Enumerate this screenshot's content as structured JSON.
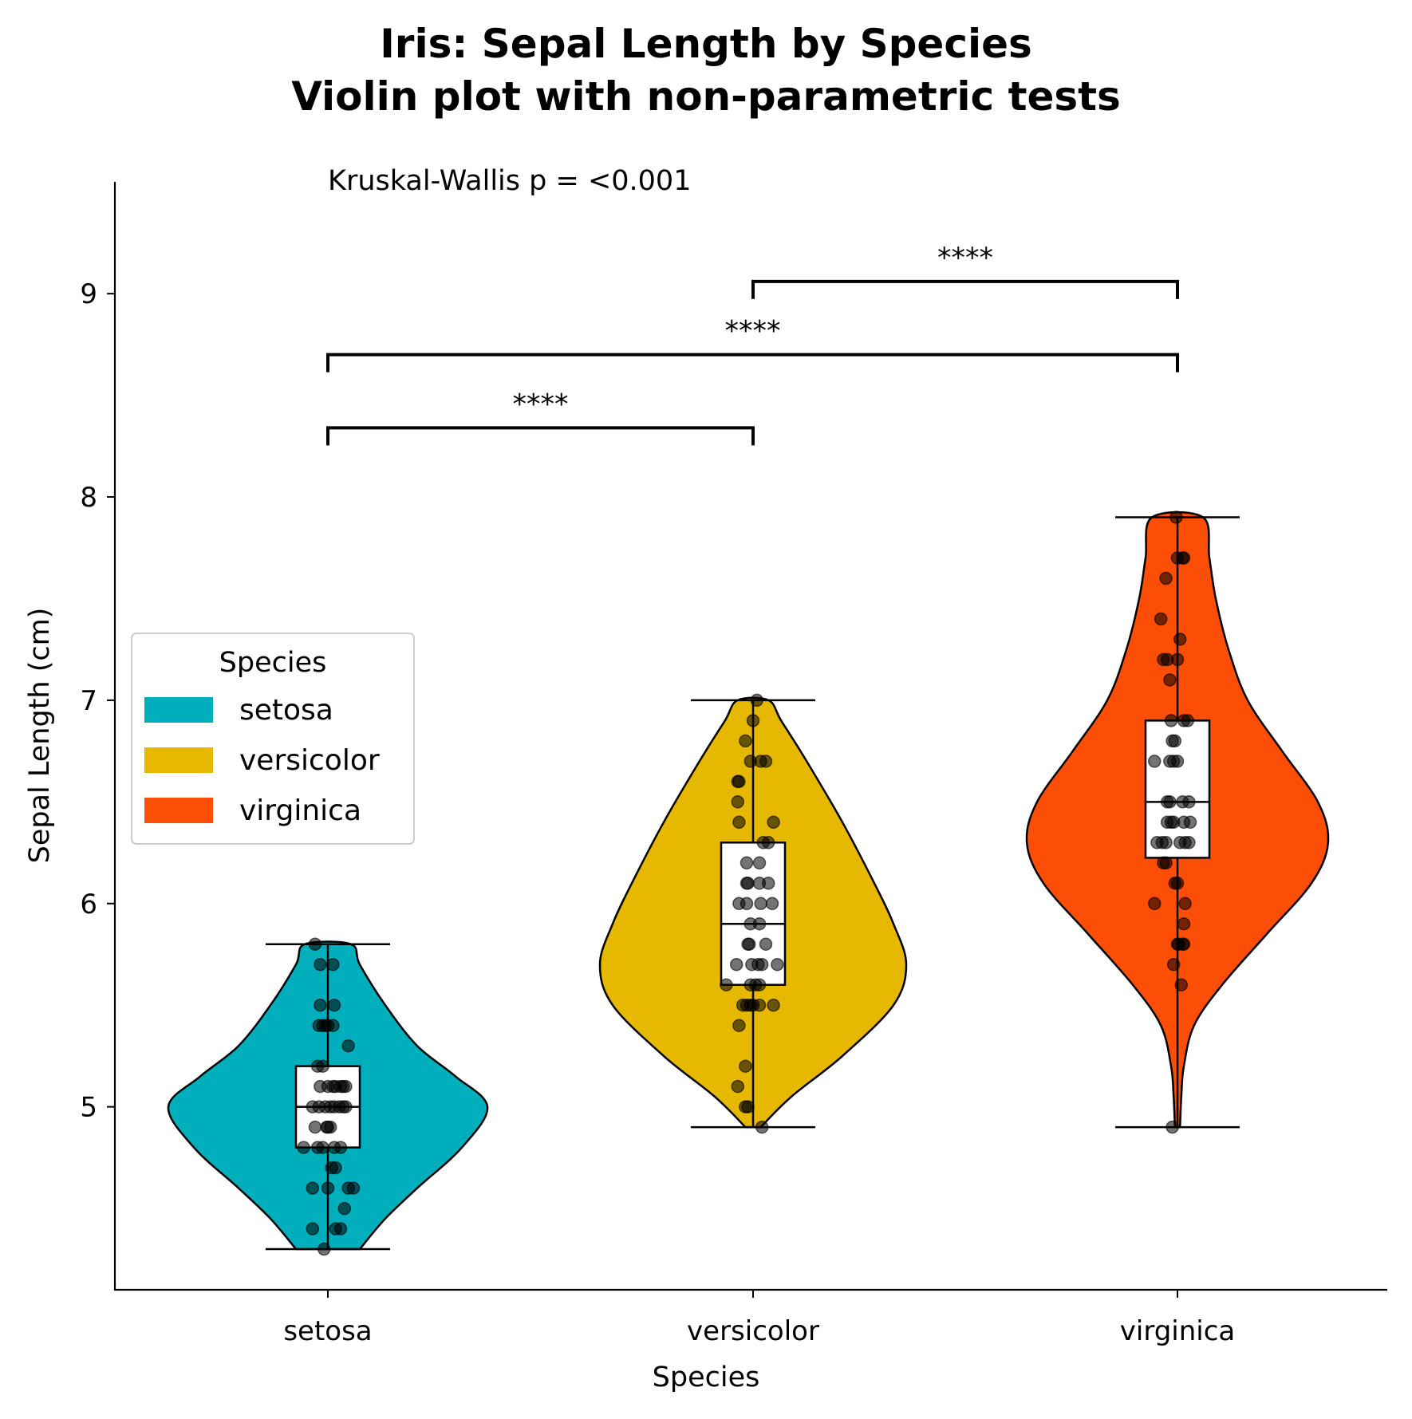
{
  "chart_data": {
    "type": "violin",
    "title": [
      "Iris: Sepal Length by Species",
      "Violin plot with non-parametric tests"
    ],
    "xlabel": "Species",
    "ylabel": "Sepal Length (cm)",
    "categories": [
      "setosa",
      "versicolor",
      "virginica"
    ],
    "y_ticks": [
      "5",
      "6",
      "7",
      "8",
      "9"
    ],
    "ylim": [
      4.1,
      9.55
    ],
    "annotation": "Kruskal-Wallis p = <0.001",
    "legend": {
      "title": "Species",
      "placement": "center-left",
      "entries": [
        {
          "label": "setosa",
          "color": "#00AFBB"
        },
        {
          "label": "versicolor",
          "color": "#E7B800"
        },
        {
          "label": "virginica",
          "color": "#FC4E07"
        }
      ]
    },
    "series": [
      {
        "category": "setosa",
        "color": "#00AFBB",
        "min": 4.3,
        "q1": 4.8,
        "median": 5.0,
        "q3": 5.2,
        "max": 5.8,
        "density": [
          [
            4.3,
            0.25
          ],
          [
            4.45,
            0.45
          ],
          [
            4.6,
            0.7
          ],
          [
            4.8,
            1.05
          ],
          [
            5.0,
            1.25
          ],
          [
            5.15,
            1.0
          ],
          [
            5.3,
            0.7
          ],
          [
            5.5,
            0.45
          ],
          [
            5.7,
            0.25
          ],
          [
            5.8,
            0.18
          ]
        ],
        "points": [
          [
            4.3,
            -0.03
          ],
          [
            4.4,
            -0.12
          ],
          [
            4.4,
            0.06
          ],
          [
            4.4,
            0.1
          ],
          [
            4.5,
            0.13
          ],
          [
            4.6,
            -0.12
          ],
          [
            4.6,
            0.0
          ],
          [
            4.6,
            0.16
          ],
          [
            4.6,
            0.2
          ],
          [
            4.7,
            0.03
          ],
          [
            4.7,
            0.06
          ],
          [
            4.8,
            -0.19
          ],
          [
            4.8,
            -0.08
          ],
          [
            4.8,
            -0.04
          ],
          [
            4.8,
            0.05
          ],
          [
            4.8,
            0.1
          ],
          [
            4.9,
            -0.1
          ],
          [
            4.9,
            -0.01
          ],
          [
            4.9,
            0.0
          ],
          [
            4.9,
            0.02
          ],
          [
            5.0,
            -0.12
          ],
          [
            5.0,
            -0.07
          ],
          [
            5.0,
            -0.02
          ],
          [
            5.0,
            0.02
          ],
          [
            5.0,
            0.05
          ],
          [
            5.0,
            0.09
          ],
          [
            5.0,
            0.12
          ],
          [
            5.0,
            0.14
          ],
          [
            5.1,
            -0.06
          ],
          [
            5.1,
            0.0
          ],
          [
            5.1,
            0.04
          ],
          [
            5.1,
            0.06
          ],
          [
            5.1,
            0.1
          ],
          [
            5.1,
            0.12
          ],
          [
            5.1,
            0.14
          ],
          [
            5.2,
            -0.08
          ],
          [
            5.2,
            -0.04
          ],
          [
            5.3,
            0.16
          ],
          [
            5.4,
            -0.07
          ],
          [
            5.4,
            -0.04
          ],
          [
            5.4,
            -0.02
          ],
          [
            5.4,
            0.0
          ],
          [
            5.4,
            0.04
          ],
          [
            5.5,
            -0.06
          ],
          [
            5.5,
            0.05
          ],
          [
            5.7,
            -0.06
          ],
          [
            5.7,
            0.04
          ],
          [
            5.8,
            -0.1
          ]
        ]
      },
      {
        "category": "versicolor",
        "color": "#E7B800",
        "min": 4.9,
        "q1": 5.6,
        "median": 5.9,
        "q3": 6.3,
        "max": 7.0,
        "density": [
          [
            4.9,
            0.06
          ],
          [
            5.05,
            0.3
          ],
          [
            5.25,
            0.7
          ],
          [
            5.5,
            1.1
          ],
          [
            5.7,
            1.2
          ],
          [
            5.9,
            1.1
          ],
          [
            6.1,
            0.95
          ],
          [
            6.4,
            0.7
          ],
          [
            6.7,
            0.42
          ],
          [
            6.9,
            0.22
          ],
          [
            7.0,
            0.12
          ]
        ],
        "points": [
          [
            4.9,
            0.07
          ],
          [
            5.0,
            -0.06
          ],
          [
            5.0,
            -0.04
          ],
          [
            5.1,
            -0.12
          ],
          [
            5.2,
            -0.06
          ],
          [
            5.4,
            -0.11
          ],
          [
            5.5,
            -0.08
          ],
          [
            5.5,
            -0.05
          ],
          [
            5.5,
            -0.02
          ],
          [
            5.5,
            0.0
          ],
          [
            5.5,
            0.05
          ],
          [
            5.5,
            0.16
          ],
          [
            5.6,
            -0.21
          ],
          [
            5.6,
            -0.02
          ],
          [
            5.6,
            0.02
          ],
          [
            5.6,
            0.05
          ],
          [
            5.7,
            -0.13
          ],
          [
            5.7,
            -0.01
          ],
          [
            5.7,
            0.04
          ],
          [
            5.7,
            0.07
          ],
          [
            5.7,
            0.19
          ],
          [
            5.8,
            -0.04
          ],
          [
            5.8,
            -0.03
          ],
          [
            5.8,
            0.1
          ],
          [
            5.9,
            -0.02
          ],
          [
            5.9,
            0.05
          ],
          [
            6.0,
            -0.11
          ],
          [
            6.0,
            -0.05
          ],
          [
            6.0,
            0.06
          ],
          [
            6.0,
            0.15
          ],
          [
            6.1,
            -0.05
          ],
          [
            6.1,
            -0.04
          ],
          [
            6.1,
            0.05
          ],
          [
            6.1,
            0.12
          ],
          [
            6.2,
            -0.05
          ],
          [
            6.2,
            0.05
          ],
          [
            6.3,
            0.08
          ],
          [
            6.3,
            0.12
          ],
          [
            6.4,
            -0.11
          ],
          [
            6.4,
            0.16
          ],
          [
            6.5,
            -0.12
          ],
          [
            6.6,
            -0.12
          ],
          [
            6.6,
            -0.11
          ],
          [
            6.7,
            -0.02
          ],
          [
            6.7,
            0.06
          ],
          [
            6.7,
            0.1
          ],
          [
            6.8,
            -0.06
          ],
          [
            6.9,
            0.0
          ],
          [
            7.0,
            0.03
          ]
        ]
      },
      {
        "category": "virginica",
        "color": "#FC4E07",
        "min": 4.9,
        "q1": 6.225,
        "median": 6.5,
        "q3": 6.9,
        "max": 7.9,
        "density": [
          [
            4.9,
            0.02
          ],
          [
            5.05,
            0.03
          ],
          [
            5.2,
            0.05
          ],
          [
            5.4,
            0.13
          ],
          [
            5.6,
            0.35
          ],
          [
            5.85,
            0.7
          ],
          [
            6.1,
            1.05
          ],
          [
            6.3,
            1.18
          ],
          [
            6.5,
            1.1
          ],
          [
            6.75,
            0.82
          ],
          [
            7.0,
            0.55
          ],
          [
            7.25,
            0.4
          ],
          [
            7.5,
            0.3
          ],
          [
            7.7,
            0.25
          ],
          [
            7.9,
            0.2
          ]
        ],
        "points": [
          [
            4.9,
            -0.04
          ],
          [
            5.6,
            0.03
          ],
          [
            5.7,
            -0.03
          ],
          [
            5.8,
            0.0
          ],
          [
            5.8,
            0.01
          ],
          [
            5.8,
            0.04
          ],
          [
            5.8,
            0.05
          ],
          [
            5.9,
            0.05
          ],
          [
            6.0,
            -0.18
          ],
          [
            6.0,
            0.06
          ],
          [
            6.1,
            -0.02
          ],
          [
            6.1,
            0.0
          ],
          [
            6.2,
            -0.11
          ],
          [
            6.2,
            -0.09
          ],
          [
            6.3,
            -0.16
          ],
          [
            6.3,
            -0.12
          ],
          [
            6.3,
            -0.09
          ],
          [
            6.3,
            0.02
          ],
          [
            6.3,
            0.06
          ],
          [
            6.3,
            0.09
          ],
          [
            6.4,
            -0.08
          ],
          [
            6.4,
            -0.05
          ],
          [
            6.4,
            -0.03
          ],
          [
            6.4,
            0.05
          ],
          [
            6.4,
            0.1
          ],
          [
            6.5,
            -0.08
          ],
          [
            6.5,
            -0.06
          ],
          [
            6.5,
            0.04
          ],
          [
            6.5,
            0.09
          ],
          [
            6.7,
            -0.18
          ],
          [
            6.7,
            -0.06
          ],
          [
            6.7,
            -0.03
          ],
          [
            6.7,
            0.0
          ],
          [
            6.8,
            -0.04
          ],
          [
            6.8,
            -0.02
          ],
          [
            6.9,
            -0.05
          ],
          [
            6.9,
            0.05
          ],
          [
            6.9,
            0.08
          ],
          [
            7.1,
            -0.06
          ],
          [
            7.2,
            -0.11
          ],
          [
            7.2,
            -0.08
          ],
          [
            7.2,
            0.0
          ],
          [
            7.3,
            0.02
          ],
          [
            7.4,
            -0.13
          ],
          [
            7.6,
            -0.09
          ],
          [
            7.7,
            0.0
          ],
          [
            7.7,
            0.04
          ],
          [
            7.7,
            0.05
          ],
          [
            7.9,
            -0.01
          ]
        ]
      }
    ],
    "comparisons": [
      {
        "from": "setosa",
        "to": "versicolor",
        "y": 8.34,
        "label": "****"
      },
      {
        "from": "setosa",
        "to": "virginica",
        "y": 8.7,
        "label": "****"
      },
      {
        "from": "versicolor",
        "to": "virginica",
        "y": 9.06,
        "label": "****"
      }
    ]
  }
}
